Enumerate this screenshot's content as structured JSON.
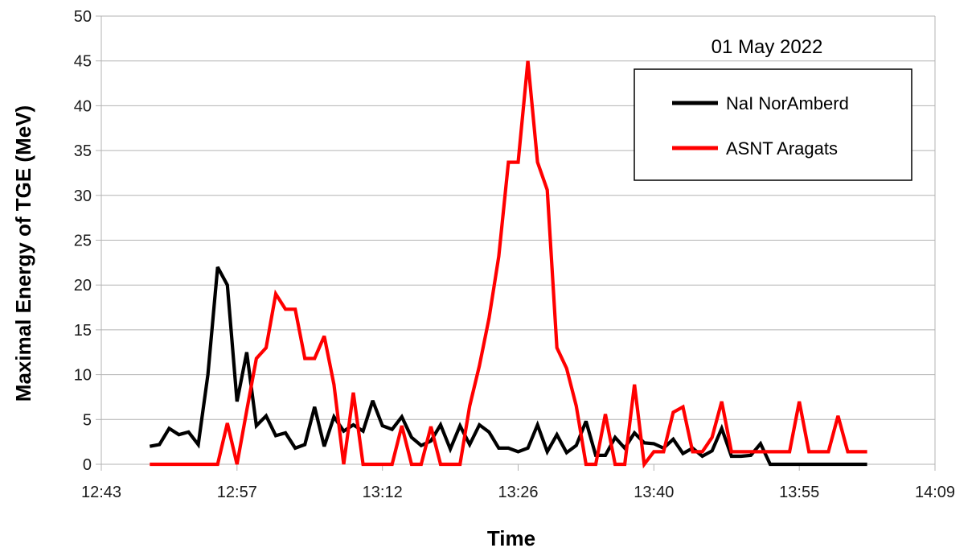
{
  "chart_data": {
    "type": "line",
    "annotation": "01 May 2022",
    "xlabel": "Time",
    "ylabel": "Maximal Energy of TGE (MeV)",
    "ylim": [
      0,
      50
    ],
    "yticks": [
      0,
      5,
      10,
      15,
      20,
      25,
      30,
      35,
      40,
      45,
      50
    ],
    "xlim": [
      "12:43",
      "14:09"
    ],
    "xticks": [
      "12:43",
      "12:57",
      "13:12",
      "13:26",
      "13:40",
      "13:55",
      "14:09"
    ],
    "grid": true,
    "legend_position": "top-right",
    "x": [
      "12:48",
      "12:49",
      "12:50",
      "12:51",
      "12:52",
      "12:53",
      "12:54",
      "12:55",
      "12:56",
      "12:57",
      "12:58",
      "12:59",
      "13:00",
      "13:01",
      "13:02",
      "13:03",
      "13:04",
      "13:05",
      "13:06",
      "13:07",
      "13:08",
      "13:09",
      "13:10",
      "13:11",
      "13:12",
      "13:13",
      "13:14",
      "13:15",
      "13:16",
      "13:17",
      "13:18",
      "13:19",
      "13:20",
      "13:21",
      "13:22",
      "13:23",
      "13:24",
      "13:25",
      "13:26",
      "13:27",
      "13:28",
      "13:29",
      "13:30",
      "13:31",
      "13:32",
      "13:33",
      "13:34",
      "13:35",
      "13:36",
      "13:37",
      "13:38",
      "13:39",
      "13:40",
      "13:41",
      "13:42",
      "13:43",
      "13:44",
      "13:45",
      "13:46",
      "13:47",
      "13:48",
      "13:49",
      "13:50",
      "13:51",
      "13:52",
      "13:53",
      "13:54",
      "13:55",
      "13:56",
      "13:57",
      "13:58",
      "13:59",
      "14:00",
      "14:01",
      "14:02"
    ],
    "series": [
      {
        "name": "NaI NorAmberd",
        "color": "#000000",
        "values": [
          2.0,
          2.2,
          4.0,
          3.3,
          3.6,
          2.2,
          10.0,
          22.0,
          20.0,
          7.0,
          12.5,
          4.3,
          5.4,
          3.2,
          3.5,
          1.8,
          2.2,
          6.4,
          2.0,
          5.3,
          3.7,
          4.4,
          3.7,
          7.1,
          4.3,
          3.9,
          5.3,
          3.0,
          2.1,
          2.6,
          4.4,
          1.7,
          4.3,
          2.2,
          4.4,
          3.6,
          1.8,
          1.8,
          1.4,
          1.8,
          4.4,
          1.4,
          3.3,
          1.3,
          2.1,
          4.8,
          1.0,
          1.0,
          3.0,
          1.8,
          3.5,
          2.4,
          2.3,
          1.8,
          2.8,
          1.2,
          1.8,
          0.9,
          1.5,
          4.0,
          0.9,
          0.9,
          1.0,
          2.3,
          0.0,
          0.0,
          0.0,
          0.0,
          0.0,
          0.0,
          0.0,
          0.0,
          0.0,
          0.0,
          0.0
        ]
      },
      {
        "name": "ASNT Aragats",
        "color": "#ff0000",
        "values": [
          0.0,
          0.0,
          0.0,
          0.0,
          0.0,
          0.0,
          0.0,
          0.0,
          4.6,
          0.0,
          6.0,
          11.8,
          13.0,
          19.0,
          17.3,
          17.3,
          11.8,
          11.8,
          14.3,
          8.9,
          0.0,
          8.0,
          0.0,
          0.0,
          0.0,
          0.0,
          4.3,
          0.0,
          0.0,
          4.2,
          0.0,
          0.0,
          0.0,
          6.5,
          11.0,
          16.3,
          23.2,
          33.7,
          33.7,
          45.0,
          33.7,
          30.6,
          13.0,
          10.7,
          6.5,
          0.0,
          0.0,
          5.6,
          0.0,
          0.0,
          8.9,
          0.0,
          1.4,
          1.4,
          5.8,
          6.4,
          1.4,
          1.4,
          3.0,
          7.0,
          1.4,
          1.4,
          1.4,
          1.4,
          1.4,
          1.4,
          1.4,
          7.0,
          1.4,
          1.4,
          1.4,
          5.4,
          1.4,
          1.4,
          1.4
        ]
      }
    ]
  }
}
